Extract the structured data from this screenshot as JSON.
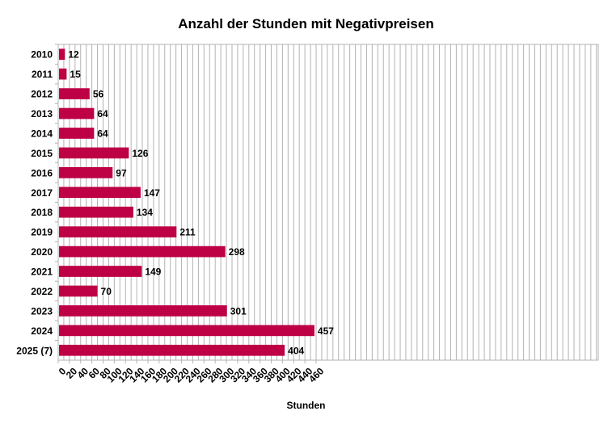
{
  "chart_data": {
    "type": "bar",
    "orientation": "horizontal",
    "title": "Anzahl der Stunden mit Negativpreisen",
    "xlabel": "Stunden",
    "ylabel": "",
    "categories": [
      "2010",
      "2011",
      "2012",
      "2013",
      "2014",
      "2015",
      "2016",
      "2017",
      "2018",
      "2019",
      "2020",
      "2021",
      "2022",
      "2023",
      "2024",
      "2025 (7)"
    ],
    "values": [
      12,
      15,
      56,
      64,
      64,
      126,
      97,
      147,
      134,
      211,
      298,
      149,
      70,
      301,
      457,
      404
    ],
    "xlim": [
      0,
      480
    ],
    "x_ticks": [
      0,
      20,
      40,
      60,
      80,
      100,
      120,
      140,
      160,
      180,
      200,
      220,
      240,
      260,
      280,
      300,
      320,
      340,
      360,
      380,
      400,
      420,
      440,
      460
    ],
    "grid": true,
    "bar_color": "#be0045",
    "data_labels": true
  }
}
